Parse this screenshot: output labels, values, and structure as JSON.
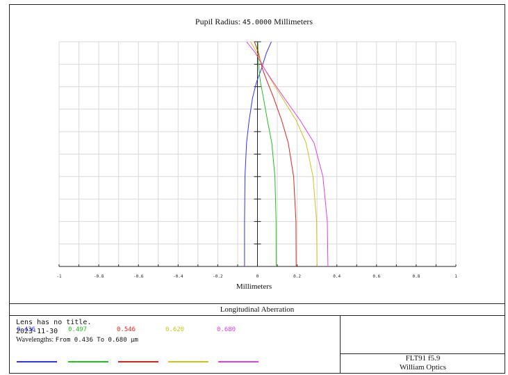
{
  "header": {
    "pupil_label": "Pupil Radius:",
    "pupil_value": "45.0000",
    "pupil_unit": "Millimeters"
  },
  "chart_data": {
    "type": "line",
    "title": "Pupil Radius: 45.0000 Millimeters",
    "xlabel": "Millimeters",
    "ylabel": "",
    "xlim": [
      -1,
      1
    ],
    "ylim": [
      0,
      1
    ],
    "grid": true,
    "x_ticks": [
      -1,
      -0.8,
      -0.6,
      -0.4,
      -0.2,
      0,
      0.2,
      0.4,
      0.6,
      0.8,
      1
    ],
    "x_tick_labels": [
      "-1",
      "-0.8",
      "-0.6",
      "-0.4",
      "-0.2",
      "0",
      "0.2",
      "0.4",
      "0.6",
      "0.8",
      "1"
    ],
    "series": [
      {
        "name": "0.436",
        "color": "#3030ff",
        "x": [
          -0.065,
          -0.065,
          -0.063,
          -0.055,
          -0.042,
          -0.025,
          -0.005,
          0.02,
          0.045,
          0.07
        ],
        "y": [
          0.0,
          0.2,
          0.4,
          0.55,
          0.65,
          0.75,
          0.82,
          0.88,
          0.95,
          1.0
        ]
      },
      {
        "name": "0.497",
        "color": "#20c020",
        "x": [
          0.095,
          0.094,
          0.088,
          0.072,
          0.05,
          0.03,
          0.015,
          0.007,
          0.003,
          0.002
        ],
        "y": [
          0.0,
          0.2,
          0.4,
          0.55,
          0.65,
          0.75,
          0.82,
          0.88,
          0.95,
          1.0
        ]
      },
      {
        "name": "0.546",
        "color": "#e02020",
        "x": [
          0.195,
          0.194,
          0.182,
          0.155,
          0.122,
          0.082,
          0.05,
          0.025,
          0.005,
          -0.015
        ],
        "y": [
          0.0,
          0.2,
          0.4,
          0.55,
          0.65,
          0.75,
          0.82,
          0.88,
          0.95,
          1.0
        ]
      },
      {
        "name": "0.620",
        "color": "#d0c020",
        "x": [
          0.3,
          0.298,
          0.28,
          0.245,
          0.195,
          0.125,
          0.075,
          0.035,
          -0.002,
          -0.035
        ],
        "y": [
          0.0,
          0.2,
          0.4,
          0.55,
          0.65,
          0.75,
          0.82,
          0.88,
          0.95,
          1.0
        ]
      },
      {
        "name": "0.680",
        "color": "#e040e0",
        "x": [
          0.355,
          0.352,
          0.33,
          0.285,
          0.215,
          0.135,
          0.08,
          0.035,
          -0.01,
          -0.055
        ],
        "y": [
          0.0,
          0.2,
          0.4,
          0.55,
          0.65,
          0.75,
          0.82,
          0.88,
          0.95,
          1.0
        ]
      }
    ]
  },
  "caption": "Longitudinal Aberration",
  "info": {
    "lens_title": "Lens has no title.",
    "date": "2023-11-30",
    "wavelengths_label": "Wavelengths:",
    "wavelengths_range": "From 0.436 To 0.680 µm",
    "wl": [
      "0.436",
      "0.497",
      "0.546",
      "0.620",
      "0.680"
    ],
    "wl_colors": [
      "#3030ff",
      "#20c020",
      "#e02020",
      "#d0c020",
      "#e040e0"
    ]
  },
  "lens_name": {
    "line1": "FLT91 f5.9",
    "line2": "William Optics"
  }
}
